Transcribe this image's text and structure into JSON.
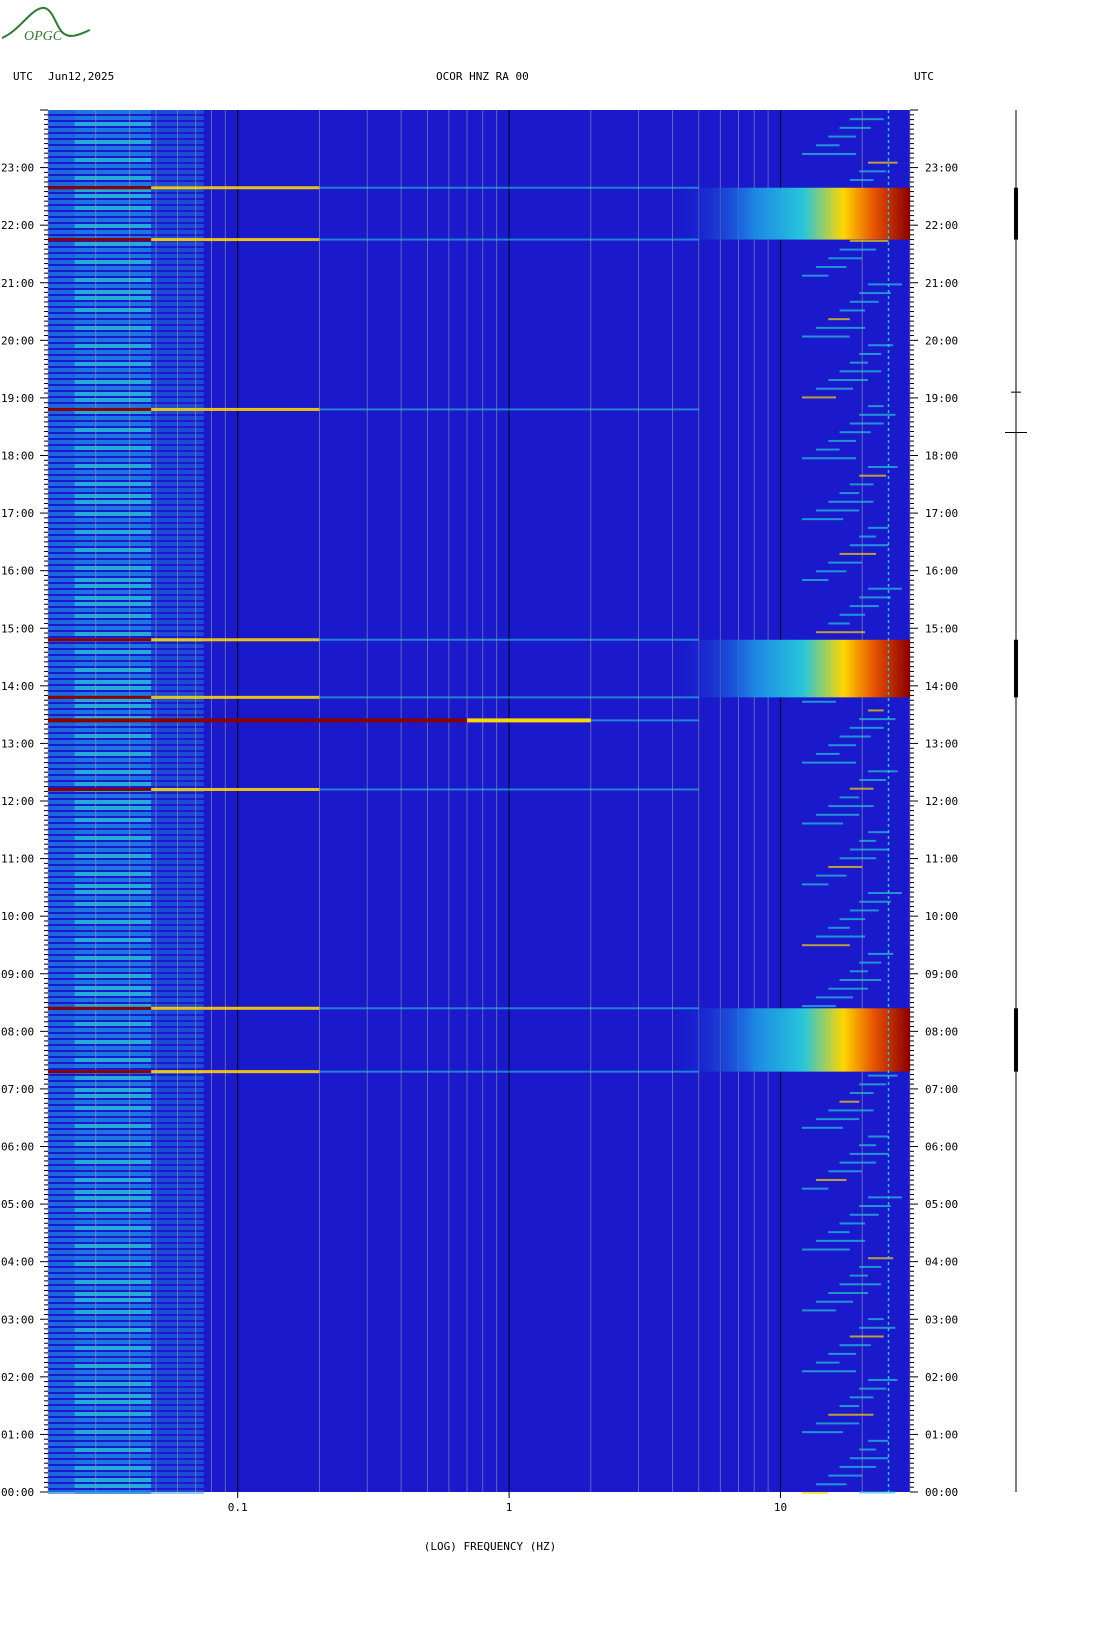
{
  "header": {
    "left_utc": "UTC",
    "date": "Jun12,2025",
    "station": "OCOR HNZ RA 00",
    "right_utc": "UTC"
  },
  "logo": {
    "text": "OPGC",
    "color": "#2e7d32"
  },
  "colors": {
    "background": "#1a1acc",
    "band_low": "#1e88e5",
    "band_cyan": "#26c6da",
    "hot_red": "#8b0000",
    "hot_yellow": "#ffd600",
    "gridline": "#9e9e9e",
    "trace": "#000000"
  },
  "chart_data": {
    "type": "heatmap",
    "xlabel": "(LOG) FREQUENCY (HZ)",
    "x_scale": "log",
    "xlim": [
      0.02,
      30
    ],
    "x_tick_labels": [
      "0.1",
      "1",
      "10"
    ],
    "x_tick_values": [
      0.1,
      1,
      10
    ],
    "ylim_hours": [
      0,
      24
    ],
    "y_tick_labels": [
      "00:00",
      "01:00",
      "02:00",
      "03:00",
      "04:00",
      "05:00",
      "06:00",
      "07:00",
      "08:00",
      "09:00",
      "10:00",
      "11:00",
      "12:00",
      "13:00",
      "14:00",
      "15:00",
      "16:00",
      "17:00",
      "18:00",
      "19:00",
      "20:00",
      "21:00",
      "22:00",
      "23:00"
    ],
    "strong_events": [
      {
        "start_hour": 7.3,
        "end_hour": 8.4,
        "max_freq_hz": 30
      },
      {
        "start_hour": 13.8,
        "end_hour": 14.8,
        "max_freq_hz": 30
      },
      {
        "start_hour": 21.75,
        "end_hour": 22.65,
        "max_freq_hz": 30
      }
    ],
    "bright_lines_hours": [
      7.3,
      8.4,
      12.2,
      13.4,
      13.8,
      14.8,
      18.8,
      21.75,
      22.65
    ]
  }
}
